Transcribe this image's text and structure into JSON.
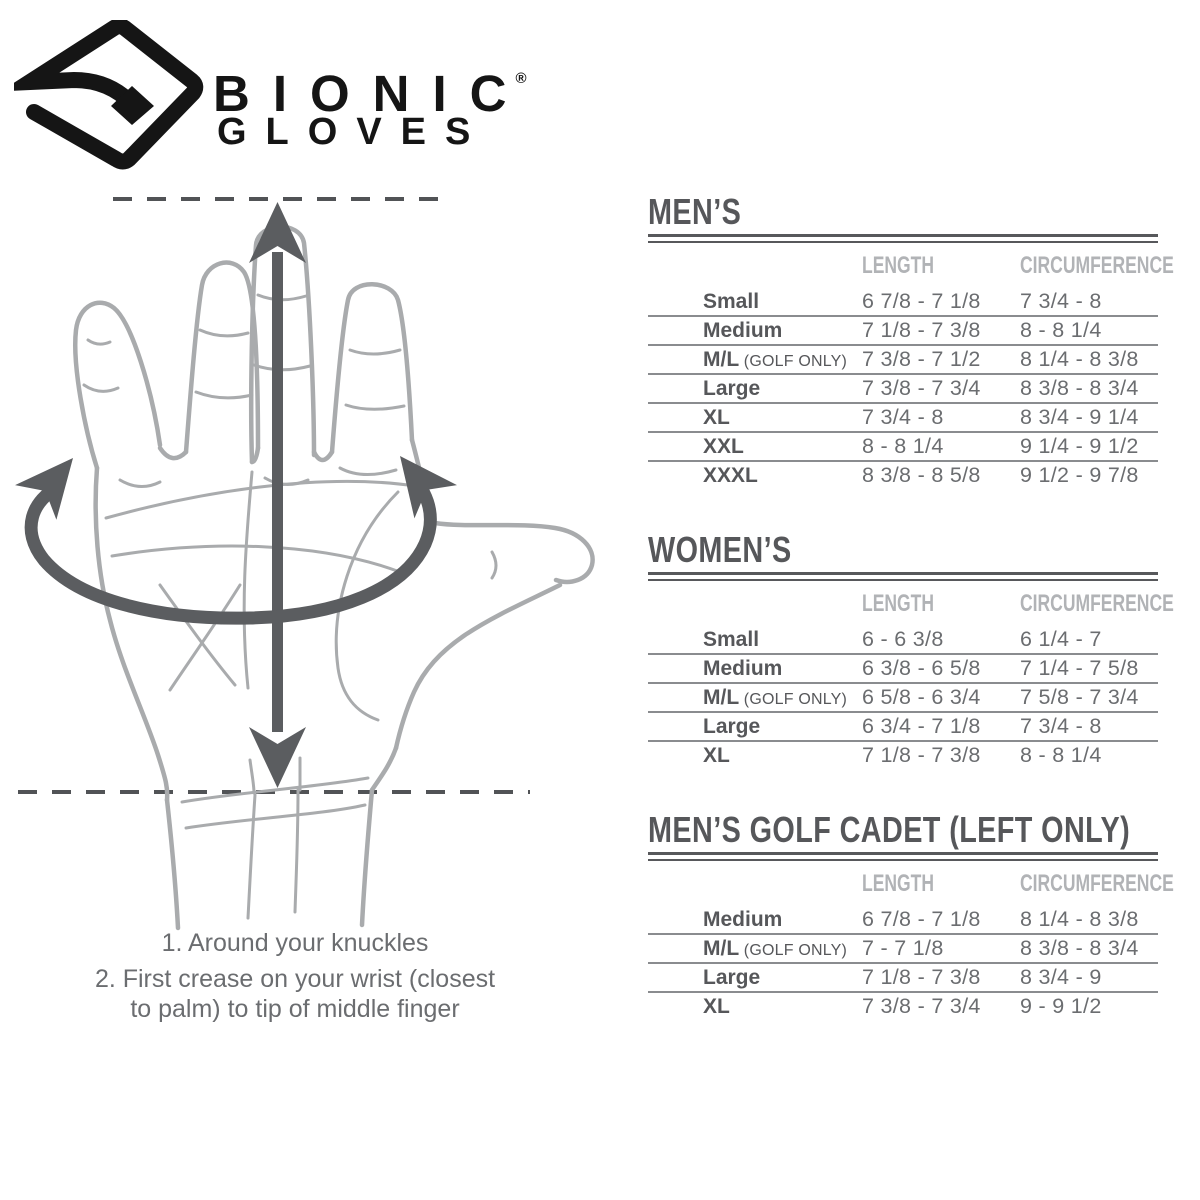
{
  "brand": {
    "name": "BIONIC",
    "reg": "®",
    "sub": "GLOVES"
  },
  "figure": {
    "instruction_lines": [
      "1. Around your knuckles",
      "2. First crease on your wrist (closest",
      "to palm) to tip of middle finger"
    ],
    "length_arrow": "vertical double-headed arrow, tip of middle finger to wrist",
    "circumference_arrow": "curved double-headed arrow around knuckles"
  },
  "tables": [
    {
      "id": "mens",
      "title": "MEN’S",
      "col1": "LENGTH",
      "col2": "CIRCUMFERENCE",
      "rows": [
        {
          "size": "Small",
          "note": "",
          "length": "6 7/8 - 7 1/8",
          "circumference": "7 3/4 - 8"
        },
        {
          "size": "Medium",
          "note": "",
          "length": "7 1/8 - 7 3/8",
          "circumference": "8 - 8 1/4"
        },
        {
          "size": "M/L",
          "note": "(GOLF ONLY)",
          "length": "7 3/8 - 7 1/2",
          "circumference": "8 1/4 - 8 3/8"
        },
        {
          "size": "Large",
          "note": "",
          "length": "7 3/8 - 7 3/4",
          "circumference": "8 3/8 - 8 3/4"
        },
        {
          "size": "XL",
          "note": "",
          "length": "7 3/4 - 8",
          "circumference": "8 3/4 - 9 1/4"
        },
        {
          "size": "XXL",
          "note": "",
          "length": "8 - 8 1/4",
          "circumference": "9 1/4 - 9 1/2"
        },
        {
          "size": "XXXL",
          "note": "",
          "length": "8 3/8 - 8 5/8",
          "circumference": "9 1/2 - 9 7/8"
        }
      ]
    },
    {
      "id": "womens",
      "title": "WOMEN’S",
      "col1": "LENGTH",
      "col2": "CIRCUMFERENCE",
      "rows": [
        {
          "size": "Small",
          "note": "",
          "length": "6 - 6 3/8",
          "circumference": "6 1/4 - 7"
        },
        {
          "size": "Medium",
          "note": "",
          "length": "6 3/8 - 6 5/8",
          "circumference": "7 1/4 - 7 5/8"
        },
        {
          "size": "M/L",
          "note": "(GOLF ONLY)",
          "length": "6 5/8 - 6 3/4",
          "circumference": "7 5/8 - 7 3/4"
        },
        {
          "size": "Large",
          "note": "",
          "length": "6 3/4 - 7 1/8",
          "circumference": "7 3/4 - 8"
        },
        {
          "size": "XL",
          "note": "",
          "length": "7 1/8 - 7 3/8",
          "circumference": "8 - 8 1/4"
        }
      ]
    },
    {
      "id": "cadet",
      "title": "MEN’S GOLF CADET (LEFT ONLY)",
      "col1": "LENGTH",
      "col2": "CIRCUMFERENCE",
      "rows": [
        {
          "size": "Medium",
          "note": "",
          "length": "6 7/8 - 7 1/8",
          "circumference": "8 1/4 - 8 3/8"
        },
        {
          "size": "M/L",
          "note": "(GOLF ONLY)",
          "length": "7 - 7 1/8",
          "circumference": "8 3/8 - 8 3/4"
        },
        {
          "size": "Large",
          "note": "",
          "length": "7 1/8 - 7 3/8",
          "circumference": "8 3/4 - 9"
        },
        {
          "size": "XL",
          "note": "",
          "length": "7 3/8 - 7 3/4",
          "circumference": "9 - 9 1/2"
        }
      ]
    }
  ],
  "colors": {
    "logo_black": "#151515",
    "title_gray": "#57585b",
    "header_gray": "#b1b3b6",
    "value_gray": "#6b6d70",
    "row_line_gray": "#8a8c8f",
    "hand_gray": "#a9abad",
    "arrow_gray": "#5b5d60",
    "dash_gray": "#515356",
    "background": "#ffffff"
  }
}
